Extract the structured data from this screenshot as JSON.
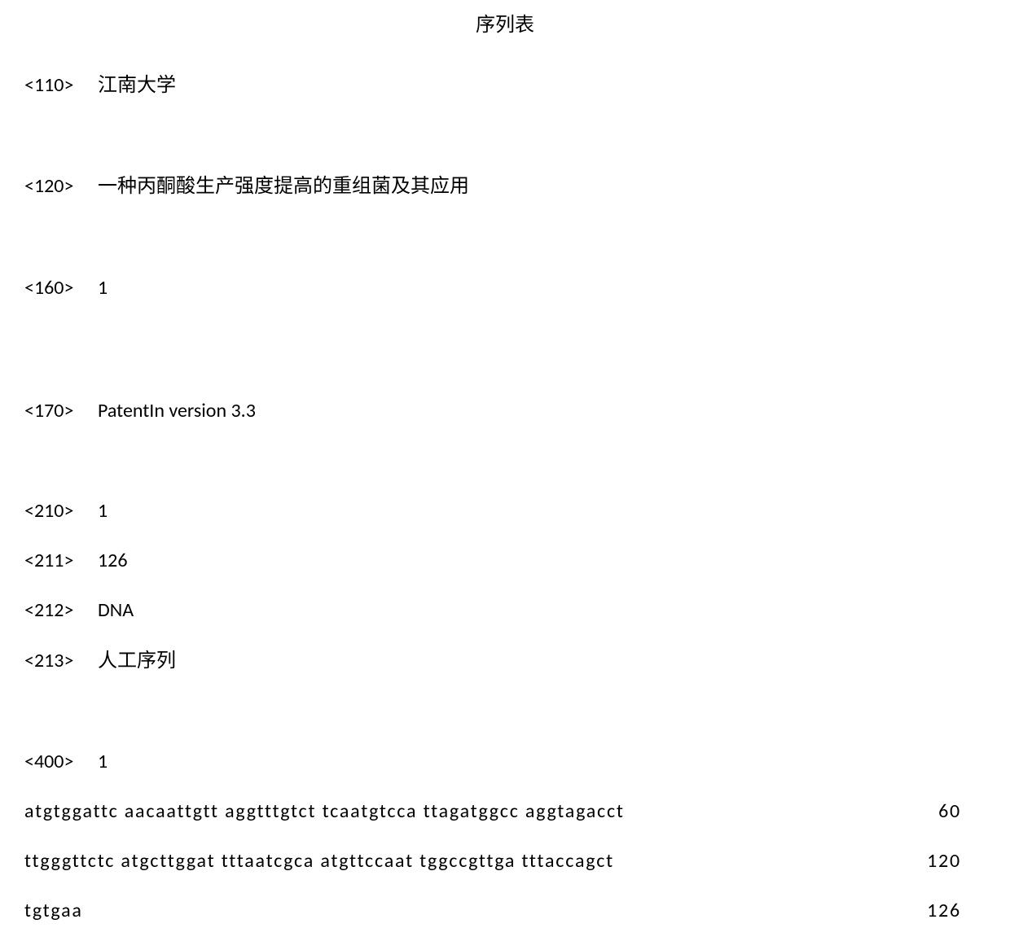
{
  "title": "序列表",
  "fields": {
    "f110": {
      "tag": "<110>",
      "value": "江南大学"
    },
    "f120": {
      "tag": "<120>",
      "value": "一种丙酮酸生产强度提高的重组菌及其应用"
    },
    "f160": {
      "tag": "<160>",
      "value": "1"
    },
    "f170": {
      "tag": "<170>",
      "value": "PatentIn version 3.3"
    },
    "f210": {
      "tag": "<210>",
      "value": "1"
    },
    "f211": {
      "tag": "<211>",
      "value": "126"
    },
    "f212": {
      "tag": "<212>",
      "value": "DNA"
    },
    "f213": {
      "tag": "<213>",
      "value": "人工序列"
    },
    "f400": {
      "tag": "<400>",
      "value": "1"
    }
  },
  "sequence": {
    "rows": [
      {
        "text": "atgtggattc aacaattgtt aggtttgtct tcaatgtcca ttagatggcc aggtagacct",
        "number": "60"
      },
      {
        "text": "ttgggttctc atgcttggat tttaatcgca atgttccaat tggccgttga tttaccagct",
        "number": "120"
      },
      {
        "text": "tgtgaa",
        "number": "126"
      }
    ]
  },
  "styling": {
    "background_color": "#ffffff",
    "text_color": "#000000",
    "title_fontsize": 24,
    "body_fontsize": 24,
    "font_family_cn": "SimSun",
    "font_family_en": "Calibri",
    "font_family_mono": "Calibri",
    "tag_column_width": 90,
    "letter_spacing_sequence": 1.8
  }
}
